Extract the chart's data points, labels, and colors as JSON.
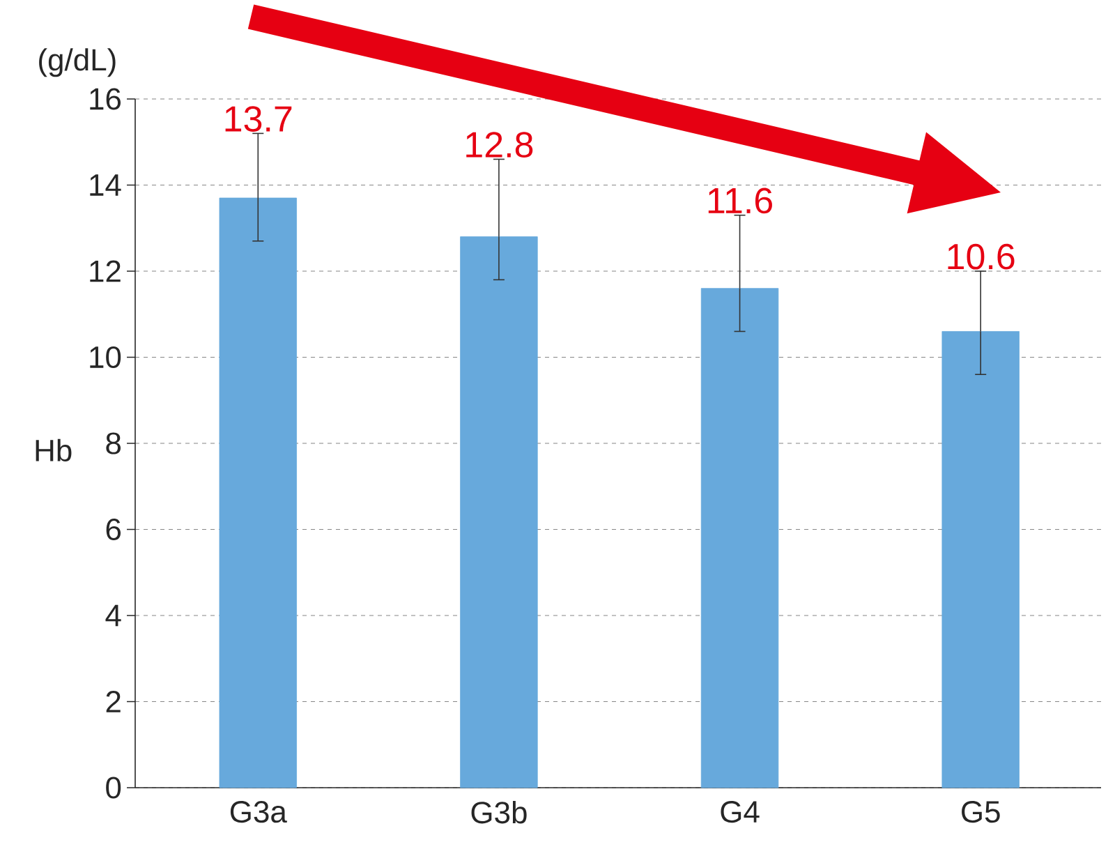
{
  "chart_data": {
    "type": "bar",
    "ylabel": "Hb",
    "annotations": [
      "(g/dL)"
    ],
    "categories": [
      "G3a",
      "G3b",
      "G4",
      "G5"
    ],
    "values": [
      13.7,
      12.8,
      11.6,
      10.6
    ],
    "color": "#67a9dc",
    "errors": [
      [
        12.7,
        15.2
      ],
      [
        11.8,
        14.6
      ],
      [
        10.6,
        13.3
      ],
      [
        9.6,
        12.0
      ]
    ],
    "ylim": [
      0,
      16
    ],
    "yticks": [
      0,
      2,
      4,
      6,
      8,
      10,
      12,
      14,
      16
    ],
    "grid": "y",
    "data_labels": true
  }
}
